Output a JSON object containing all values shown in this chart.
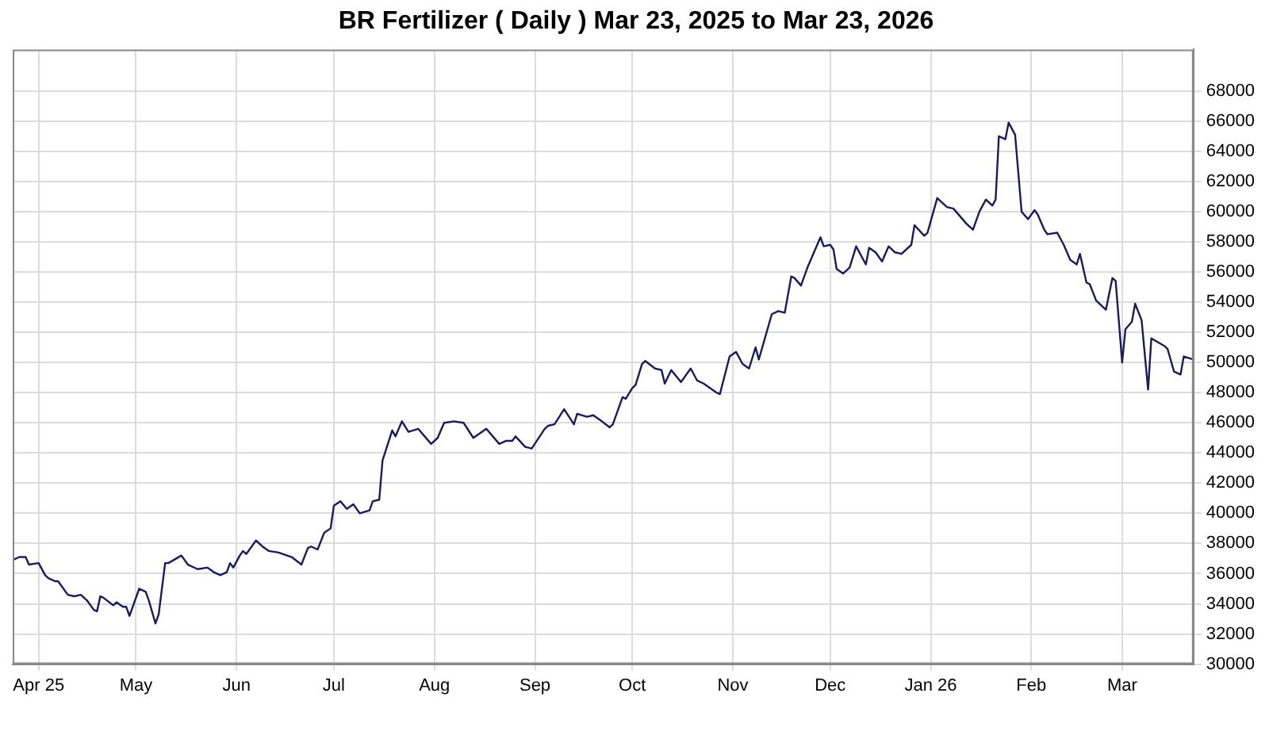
{
  "chart_data": {
    "type": "line",
    "title": "BR Fertilizer ( Daily ) Mar 23, 2025 to Mar 23, 2026",
    "x": [
      "2025-03-24",
      "2025-03-26",
      "2025-03-28",
      "2025-03-29",
      "2025-04-01",
      "2025-04-03",
      "2025-04-04",
      "2025-04-06",
      "2025-04-07",
      "2025-04-10",
      "2025-04-12",
      "2025-04-14",
      "2025-04-16",
      "2025-04-18",
      "2025-04-19",
      "2025-04-20",
      "2025-04-21",
      "2025-04-24",
      "2025-04-25",
      "2025-04-27",
      "2025-04-28",
      "2025-04-29",
      "2025-04-30",
      "2025-05-02",
      "2025-05-04",
      "2025-05-05",
      "2025-05-07",
      "2025-05-08",
      "2025-05-10",
      "2025-05-11",
      "2025-05-15",
      "2025-05-17",
      "2025-05-20",
      "2025-05-23",
      "2025-05-25",
      "2025-05-27",
      "2025-05-29",
      "2025-05-30",
      "2025-05-31",
      "2025-06-02",
      "2025-06-03",
      "2025-06-04",
      "2025-06-07",
      "2025-06-09",
      "2025-06-11",
      "2025-06-14",
      "2025-06-18",
      "2025-06-21",
      "2025-06-23",
      "2025-06-24",
      "2025-06-26",
      "2025-06-28",
      "2025-06-30",
      "2025-07-01",
      "2025-07-03",
      "2025-07-05",
      "2025-07-07",
      "2025-07-09",
      "2025-07-12",
      "2025-07-13",
      "2025-07-15",
      "2025-07-16",
      "2025-07-19",
      "2025-07-20",
      "2025-07-22",
      "2025-07-24",
      "2025-07-27",
      "2025-07-29",
      "2025-07-31",
      "2025-08-02",
      "2025-08-04",
      "2025-08-07",
      "2025-08-10",
      "2025-08-13",
      "2025-08-17",
      "2025-08-21",
      "2025-08-23",
      "2025-08-25",
      "2025-08-26",
      "2025-08-29",
      "2025-08-31",
      "2025-09-04",
      "2025-09-05",
      "2025-09-07",
      "2025-09-10",
      "2025-09-13",
      "2025-09-14",
      "2025-09-17",
      "2025-09-19",
      "2025-09-21",
      "2025-09-24",
      "2025-09-25",
      "2025-09-28",
      "2025-09-29",
      "2025-10-01",
      "2025-10-02",
      "2025-10-04",
      "2025-10-05",
      "2025-10-08",
      "2025-10-10",
      "2025-10-11",
      "2025-10-13",
      "2025-10-16",
      "2025-10-19",
      "2025-10-21",
      "2025-10-23",
      "2025-10-27",
      "2025-10-28",
      "2025-10-31",
      "2025-11-02",
      "2025-11-04",
      "2025-11-06",
      "2025-11-08",
      "2025-11-09",
      "2025-11-13",
      "2025-11-15",
      "2025-11-17",
      "2025-11-19",
      "2025-11-20",
      "2025-11-22",
      "2025-11-24",
      "2025-11-28",
      "2025-11-29",
      "2025-12-01",
      "2025-12-02",
      "2025-12-03",
      "2025-12-05",
      "2025-12-07",
      "2025-12-09",
      "2025-12-12",
      "2025-12-13",
      "2025-12-15",
      "2025-12-17",
      "2025-12-19",
      "2025-12-21",
      "2025-12-23",
      "2025-12-26",
      "2025-12-27",
      "2025-12-30",
      "2025-12-31",
      "2026-01-03",
      "2026-01-06",
      "2026-01-08",
      "2026-01-10",
      "2026-01-12",
      "2026-01-14",
      "2026-01-16",
      "2026-01-18",
      "2026-01-20",
      "2026-01-21",
      "2026-01-22",
      "2026-01-24",
      "2026-01-25",
      "2026-01-27",
      "2026-01-29",
      "2026-01-31",
      "2026-02-02",
      "2026-02-03",
      "2026-02-05",
      "2026-02-06",
      "2026-02-09",
      "2026-02-11",
      "2026-02-13",
      "2026-02-15",
      "2026-02-16",
      "2026-02-18",
      "2026-02-19",
      "2026-02-21",
      "2026-02-24",
      "2026-02-26",
      "2026-02-27",
      "2026-03-01",
      "2026-03-02",
      "2026-03-04",
      "2026-03-05",
      "2026-03-07",
      "2026-03-09",
      "2026-03-10",
      "2026-03-14",
      "2026-03-15",
      "2026-03-17",
      "2026-03-19",
      "2026-03-20",
      "2026-03-23"
    ],
    "series": [
      {
        "color": "#1a1a5e",
        "values": [
          36900,
          37100,
          37100,
          36600,
          36700,
          35900,
          35700,
          35500,
          35500,
          34600,
          34500,
          34600,
          34200,
          33600,
          33500,
          34500,
          34400,
          33900,
          34100,
          33800,
          33800,
          33200,
          33800,
          35000,
          34800,
          34200,
          32700,
          33300,
          36700,
          36700,
          37200,
          36600,
          36300,
          36400,
          36100,
          35900,
          36100,
          36700,
          36400,
          37200,
          37500,
          37300,
          38200,
          37800,
          37500,
          37400,
          37100,
          36600,
          37700,
          37800,
          37600,
          38700,
          39000,
          40500,
          40800,
          40300,
          40600,
          40000,
          40200,
          40800,
          40900,
          43500,
          45500,
          45100,
          46100,
          45400,
          45600,
          45100,
          44600,
          45000,
          46000,
          46100,
          46000,
          45000,
          45600,
          44600,
          44800,
          44800,
          45100,
          44400,
          44300,
          45600,
          45800,
          45900,
          46900,
          45900,
          46600,
          46400,
          46500,
          46200,
          45700,
          45900,
          47700,
          47600,
          48300,
          48500,
          49900,
          50100,
          49600,
          49500,
          48600,
          49500,
          48700,
          49600,
          48800,
          48600,
          48000,
          47900,
          50400,
          50700,
          49900,
          49600,
          51000,
          50200,
          53200,
          53400,
          53300,
          55700,
          55600,
          55100,
          56300,
          58300,
          57700,
          57800,
          57500,
          56200,
          55900,
          56300,
          57700,
          56500,
          57600,
          57300,
          56700,
          57700,
          57300,
          57200,
          57800,
          59100,
          58400,
          58600,
          60900,
          60300,
          60200,
          59700,
          59200,
          58800,
          60000,
          60800,
          60400,
          60800,
          65000,
          64800,
          65900,
          65100,
          60000,
          59500,
          60100,
          59800,
          58800,
          58500,
          58600,
          57800,
          56800,
          56500,
          57200,
          55300,
          55200,
          54100,
          53500,
          55600,
          55400,
          50000,
          52200,
          52700,
          53900,
          52800,
          48200,
          51600,
          51100,
          50900,
          49400,
          49200,
          50400,
          50200
        ]
      }
    ],
    "xlim": [
      "2025-03-24",
      "2026-03-23"
    ],
    "xticks": [
      {
        "value": "2025-04-01",
        "label": "Apr 25"
      },
      {
        "value": "2025-05-01",
        "label": "May"
      },
      {
        "value": "2025-06-01",
        "label": "Jun"
      },
      {
        "value": "2025-07-01",
        "label": "Jul"
      },
      {
        "value": "2025-08-01",
        "label": "Aug"
      },
      {
        "value": "2025-09-01",
        "label": "Sep"
      },
      {
        "value": "2025-10-01",
        "label": "Oct"
      },
      {
        "value": "2025-11-01",
        "label": "Nov"
      },
      {
        "value": "2025-12-01",
        "label": "Dec"
      },
      {
        "value": "2026-01-01",
        "label": "Jan 26"
      },
      {
        "value": "2026-02-01",
        "label": "Feb"
      },
      {
        "value": "2026-03-01",
        "label": "Mar"
      }
    ],
    "ylim": [
      30000,
      70750
    ],
    "yticks": [
      30000,
      32000,
      34000,
      36000,
      38000,
      40000,
      42000,
      44000,
      46000,
      48000,
      50000,
      52000,
      54000,
      56000,
      58000,
      60000,
      62000,
      64000,
      66000,
      68000
    ],
    "grid": true,
    "legend": false
  }
}
